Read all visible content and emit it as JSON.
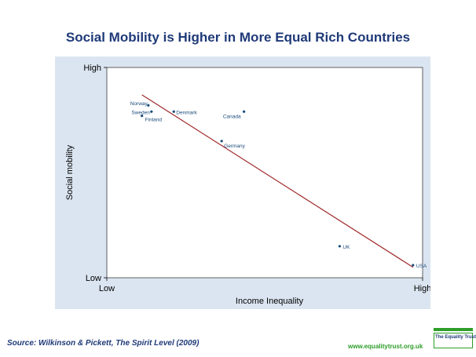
{
  "slide": {
    "title": "Social Mobility is Higher in More Equal Rich Countries",
    "source": "Source: Wilkinson & Pickett, The Spirit Level (2009)",
    "website": "www.equalitytrust.org.uk",
    "logo_text": "The Equality Trust"
  },
  "colors": {
    "title": "#1f3a78",
    "panel_background": "#dbe5f1",
    "plot_background": "#ffffff",
    "points": "#1a4a7a",
    "fit_line": "#a0282a",
    "brand_green": "#2e9e2a"
  },
  "chart_data": {
    "type": "scatter",
    "xlabel": "Income Inequality",
    "ylabel": "Social mobility",
    "xticks": [
      "Low",
      "High"
    ],
    "yticks": [
      "Low",
      "High"
    ],
    "xlim": [
      0,
      1
    ],
    "ylim": [
      0,
      1
    ],
    "grid": false,
    "points": [
      {
        "label": "Norway",
        "x": 0.16,
        "y": 0.82
      },
      {
        "label": "Sweden",
        "x": 0.17,
        "y": 0.79
      },
      {
        "label": "Finland",
        "x": 0.14,
        "y": 0.77
      },
      {
        "label": "Denmark",
        "x": 0.24,
        "y": 0.79
      },
      {
        "label": "Canada",
        "x": 0.46,
        "y": 0.79
      },
      {
        "label": "Germany",
        "x": 0.39,
        "y": 0.65
      },
      {
        "label": "UK",
        "x": 0.76,
        "y": 0.15
      },
      {
        "label": "USA",
        "x": 0.99,
        "y": 0.06
      }
    ],
    "fit_line": {
      "from": {
        "x": 0.14,
        "y": 0.87
      },
      "to": {
        "x": 0.99,
        "y": 0.05
      }
    }
  }
}
